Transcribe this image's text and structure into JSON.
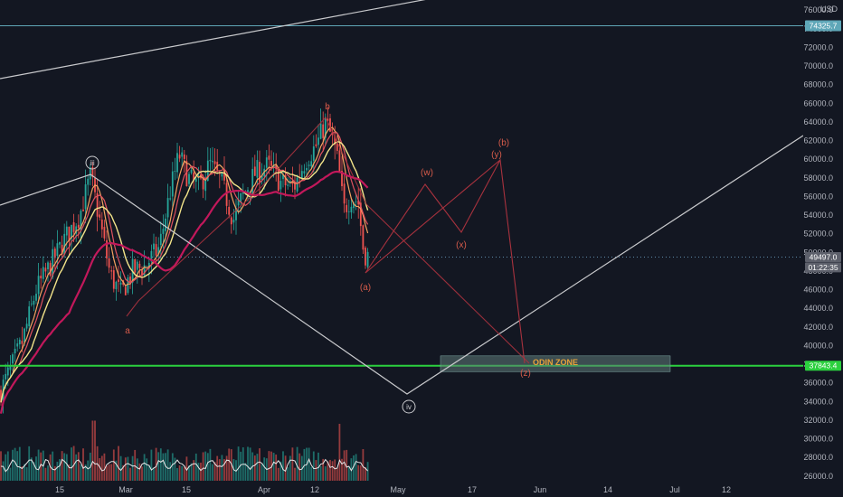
{
  "chart_data": {
    "type": "candlestick",
    "currency": "USD",
    "y_axis": {
      "ticks": [
        26000,
        28000,
        30000,
        32000,
        34000,
        36000,
        38000,
        40000,
        42000,
        44000,
        46000,
        48000,
        50000,
        52000,
        54000,
        56000,
        58000,
        60000,
        62000,
        64000,
        66000,
        68000,
        70000,
        72000,
        74000,
        76000
      ],
      "ylim": [
        25500,
        76800
      ]
    },
    "x_axis": {
      "ticks": [
        "15",
        "Mar",
        "15",
        "Apr",
        "12",
        "May",
        "17",
        "Jun",
        "14",
        "Jul",
        "12"
      ]
    },
    "price_labels": [
      {
        "value": "74325.7",
        "price": 74325.7,
        "color": "#5fa7b8",
        "id": "hline-74325"
      },
      {
        "value": "49497.0",
        "price": 49497.0,
        "color": "#5d606b",
        "id": "last-price"
      },
      {
        "value": "01:22:35",
        "price": 48400,
        "color": "#5d606b",
        "id": "countdown"
      },
      {
        "value": "37843.4",
        "price": 37843.4,
        "color": "#2bd03e",
        "id": "hline-37843"
      }
    ],
    "zone": {
      "label": "ODIN ZONE",
      "top": 38900,
      "bottom": 37200,
      "color": "#e8a33a"
    },
    "wave_labels_main": [
      "iii",
      "iv"
    ],
    "wave_labels_corrective": [
      "a",
      "b",
      "(a)",
      "(b)",
      "(w)",
      "(x)",
      "(y)",
      "(z)"
    ],
    "volume": {
      "max_value": 100
    }
  },
  "colors": {
    "background": "#131722",
    "up": "#26a69a",
    "down": "#ef5350",
    "ma_yellow": "#f3e48a",
    "ma_orange": "#f4a261",
    "ma_red": "#e05260",
    "ma_magenta": "#c2185b",
    "projection": "#a8323e",
    "wave_white": "#c8c9cc",
    "wave_red": "#d65b4a"
  }
}
